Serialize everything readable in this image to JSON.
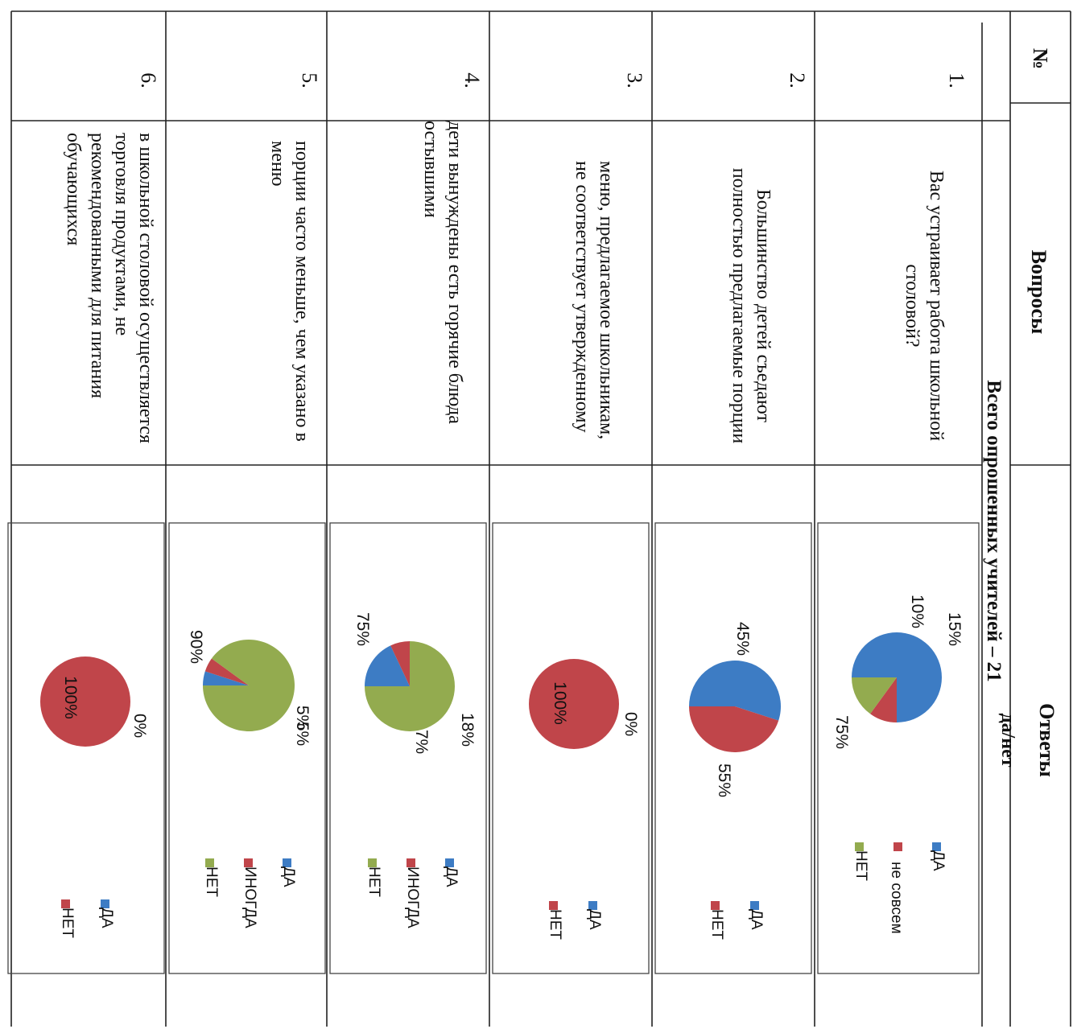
{
  "table": {
    "header": {
      "number": "№",
      "questions": "Вопросы",
      "answers_title": "Ответы",
      "answers_sub": "да/нет"
    },
    "total": "Всего опрошенных учителей – 21",
    "rows": [
      {
        "num": "1.",
        "question": "Вас устраивает работа школьной столовой?",
        "labels": [
          "15%",
          "10%",
          "75%"
        ],
        "legend": [
          "ДА",
          "не совсем",
          "НЕТ"
        ]
      },
      {
        "num": "2.",
        "question": "Большинство детей съедают полностью предлагаемые порции",
        "labels": [
          "45%",
          "55%"
        ],
        "legend": [
          "ДА",
          "НЕТ"
        ]
      },
      {
        "num": "3.",
        "question": "меню, предлагаемое школьникам, не соответствует утвержденному",
        "labels": [
          "0%",
          "100%"
        ],
        "legend": [
          "ДА",
          "НЕТ"
        ]
      },
      {
        "num": "4.",
        "question": "дети вынуждены есть горячие блюда остывшими",
        "labels": [
          "75%",
          "18%",
          "7%"
        ],
        "legend": [
          "ДА",
          "ИНОГДА",
          "НЕТ"
        ]
      },
      {
        "num": "5.",
        "question": "порции часто меньше, чем указано в меню",
        "labels": [
          "90%",
          "5%",
          "5%"
        ],
        "legend": [
          "ДА",
          "ИНОГДА",
          "НЕТ"
        ]
      },
      {
        "num": "6.",
        "question": "в школьной столовой осуществляется торговля продуктами, не рекомендованными для питания обучающихся",
        "labels": [
          "0%",
          "100%"
        ],
        "legend": [
          "ДА",
          "НЕТ"
        ]
      }
    ]
  },
  "colors": {
    "blue": "#3d7cc4",
    "red": "#c0454a",
    "green": "#93ab4f"
  },
  "chart_data": [
    {
      "type": "pie",
      "categories": [
        "ДА",
        "не совсем",
        "НЕТ"
      ],
      "values": [
        75,
        10,
        15
      ]
    },
    {
      "type": "pie",
      "categories": [
        "ДА",
        "НЕТ"
      ],
      "values": [
        55,
        45
      ]
    },
    {
      "type": "pie",
      "categories": [
        "ДА",
        "НЕТ"
      ],
      "values": [
        0,
        100
      ]
    },
    {
      "type": "pie",
      "categories": [
        "ДА",
        "ИНОГДА",
        "НЕТ"
      ],
      "values": [
        18,
        7,
        75
      ]
    },
    {
      "type": "pie",
      "categories": [
        "ДА",
        "ИНОГДА",
        "НЕТ"
      ],
      "values": [
        5,
        5,
        90
      ]
    },
    {
      "type": "pie",
      "categories": [
        "ДА",
        "НЕТ"
      ],
      "values": [
        0,
        100
      ]
    }
  ]
}
